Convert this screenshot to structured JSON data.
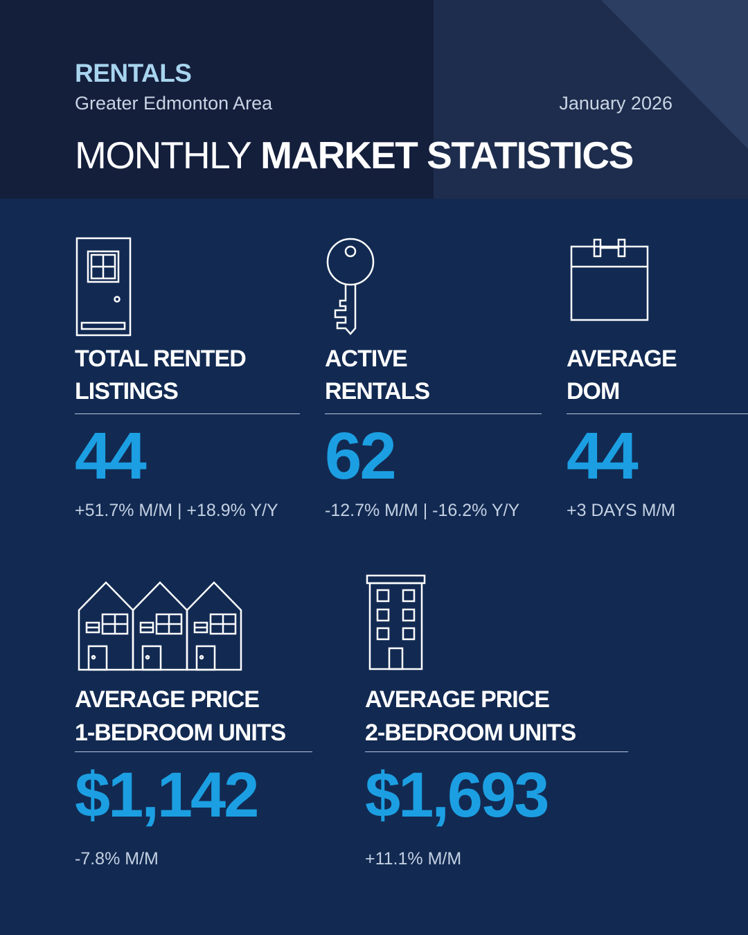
{
  "header": {
    "eyebrow": "RENTALS",
    "region": "Greater Edmonton Area",
    "period": "January 2026",
    "title_light": "MONTHLY",
    "title_bold": "MARKET STATISTICS"
  },
  "stats": [
    {
      "label_line1": "TOTAL RENTED",
      "label_line2": "LISTINGS",
      "value": "44",
      "change": "+51.7% M/M | +18.9% Y/Y",
      "icon": "door-icon"
    },
    {
      "label_line1": "ACTIVE",
      "label_line2": "RENTALS",
      "value": "62",
      "change": "-12.7% M/M | -16.2% Y/Y",
      "icon": "key-icon"
    },
    {
      "label_line1": "AVERAGE",
      "label_line2": "DOM",
      "value": "44",
      "change": "+3 DAYS M/M",
      "icon": "calendar-icon"
    },
    {
      "label_line1": "AVERAGE PRICE",
      "label_line2": "1-BEDROOM UNITS",
      "value": "$1,142",
      "change": "-7.8% M/M",
      "icon": "townhouses-icon"
    },
    {
      "label_line1": "AVERAGE PRICE",
      "label_line2": "2-BEDROOM UNITS",
      "value": "$1,693",
      "change": "+11.1% M/M",
      "icon": "apartment-building-icon"
    }
  ],
  "colors": {
    "background": "#122a52",
    "header_dark": "#141f3c",
    "accent_value": "#1c9fe2",
    "eyebrow": "#a8d4ee"
  }
}
